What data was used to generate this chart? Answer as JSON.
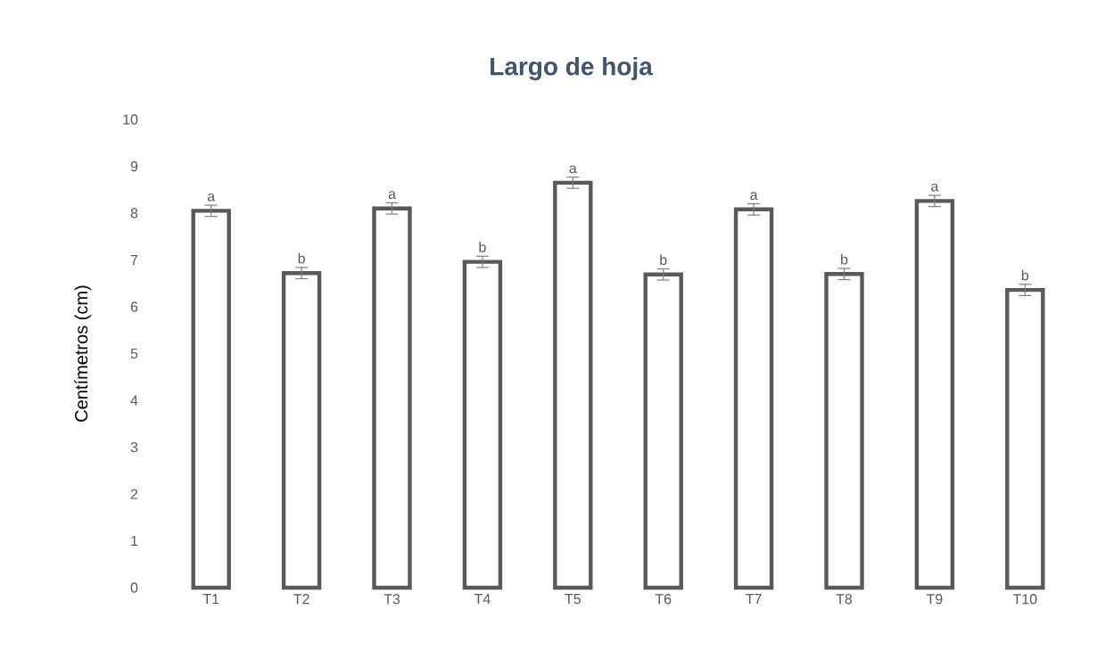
{
  "chart_data": {
    "type": "bar",
    "title": "Largo de hoja",
    "ylabel": "Centímetros (cm)",
    "categories": [
      "T1",
      "T2",
      "T3",
      "T4",
      "T5",
      "T6",
      "T7",
      "T8",
      "T9",
      "T10"
    ],
    "values": [
      8.05,
      6.72,
      8.1,
      6.96,
      8.65,
      6.69,
      8.08,
      6.7,
      8.26,
      6.36
    ],
    "errors": [
      0.12,
      0.12,
      0.12,
      0.12,
      0.12,
      0.12,
      0.12,
      0.12,
      0.12,
      0.12
    ],
    "color": "#595959",
    "ylim": [
      0,
      10
    ],
    "yticks": [
      0,
      1,
      2,
      3,
      4,
      5,
      6,
      7,
      8,
      9,
      10
    ],
    "grid": false,
    "annotations": [
      {
        "text": "a",
        "x": "T1",
        "y": 8.17
      },
      {
        "text": "b",
        "x": "T2",
        "y": 6.84
      },
      {
        "text": "a",
        "x": "T3",
        "y": 8.22
      },
      {
        "text": "b",
        "x": "T4",
        "y": 7.08
      },
      {
        "text": "a",
        "x": "T5",
        "y": 8.77
      },
      {
        "text": "b",
        "x": "T6",
        "y": 6.81
      },
      {
        "text": "a",
        "x": "T7",
        "y": 8.2
      },
      {
        "text": "b",
        "x": "T8",
        "y": 6.82
      },
      {
        "text": "a",
        "x": "T9",
        "y": 8.38
      },
      {
        "text": "b",
        "x": "T10",
        "y": 6.48
      }
    ]
  }
}
